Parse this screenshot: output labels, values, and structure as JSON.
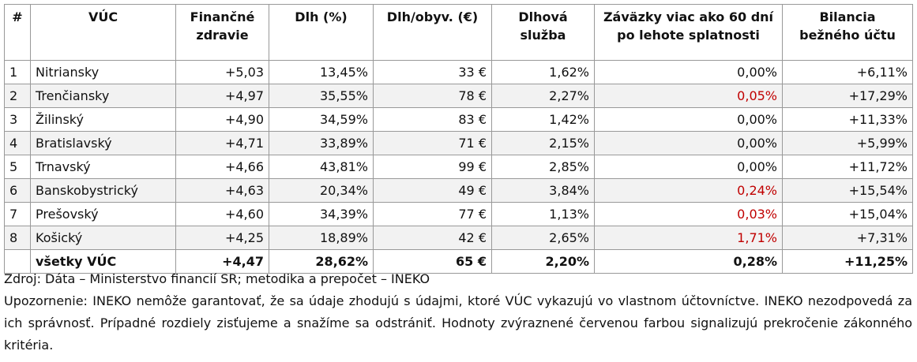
{
  "table": {
    "header": [
      [
        "#"
      ],
      [
        "VÚC"
      ],
      [
        "Finančné",
        "zdravie"
      ],
      [
        "Dlh (%)"
      ],
      [
        "Dlh/obyv. (€)"
      ],
      [
        "Dlhová",
        "služba"
      ],
      [
        "Záväzky viac ako 60 dní",
        "po lehote splatnosti"
      ],
      [
        "Bilancia",
        "bežného účtu"
      ]
    ],
    "rows": [
      [
        "1",
        "Nitriansky",
        "+5,03",
        "13,45%",
        "33 €",
        "1,62%",
        "0,00%",
        "+6,11%"
      ],
      [
        "2",
        "Trenčiansky",
        "+4,97",
        "35,55%",
        "78 €",
        "2,27%",
        {
          "text": "0,05%",
          "color": "#c00000"
        },
        "+17,29%"
      ],
      [
        "3",
        "Žilinský",
        "+4,90",
        "34,59%",
        "83 €",
        "1,42%",
        "0,00%",
        "+11,33%"
      ],
      [
        "4",
        "Bratislavský",
        "+4,71",
        "33,89%",
        "71 €",
        "2,15%",
        "0,00%",
        "+5,99%"
      ],
      [
        "5",
        "Trnavský",
        "+4,66",
        "43,81%",
        "99 €",
        "2,85%",
        "0,00%",
        "+11,72%"
      ],
      [
        "6",
        "Banskobystrický",
        "+4,63",
        "20,34%",
        "49 €",
        "3,84%",
        {
          "text": "0,24%",
          "color": "#c00000"
        },
        "+15,54%"
      ],
      [
        "7",
        "Prešovský",
        "+4,60",
        "34,39%",
        "77 €",
        "1,13%",
        {
          "text": "0,03%",
          "color": "#c00000"
        },
        "+15,04%"
      ],
      [
        "8",
        "Košický",
        "+4,25",
        "18,89%",
        "42 €",
        "2,65%",
        {
          "text": "1,71%",
          "color": "#c00000"
        },
        "+7,31%"
      ],
      [
        null,
        "všetky VÚC",
        "+4,47",
        "28,62%",
        "65 €",
        "2,20%",
        "0,28%",
        "+11,25%"
      ]
    ]
  },
  "notes": [
    "Zdroj: Dáta – Ministerstvo financií SR; metodika a prepočet – INEKO",
    "Upozornenie: INEKO nemôže garantovať, že sa údaje zhodujú s údajmi, ktoré VÚC vykazujú vo vlastnom účtovníctve. INEKO nezodpovedá za ich správnosť. Prípadné rozdiely zisťujeme a snažíme sa odstrániť. Hodnoty zvýraznené červenou farbou signalizujú prekročenie zákonného kritéria."
  ]
}
